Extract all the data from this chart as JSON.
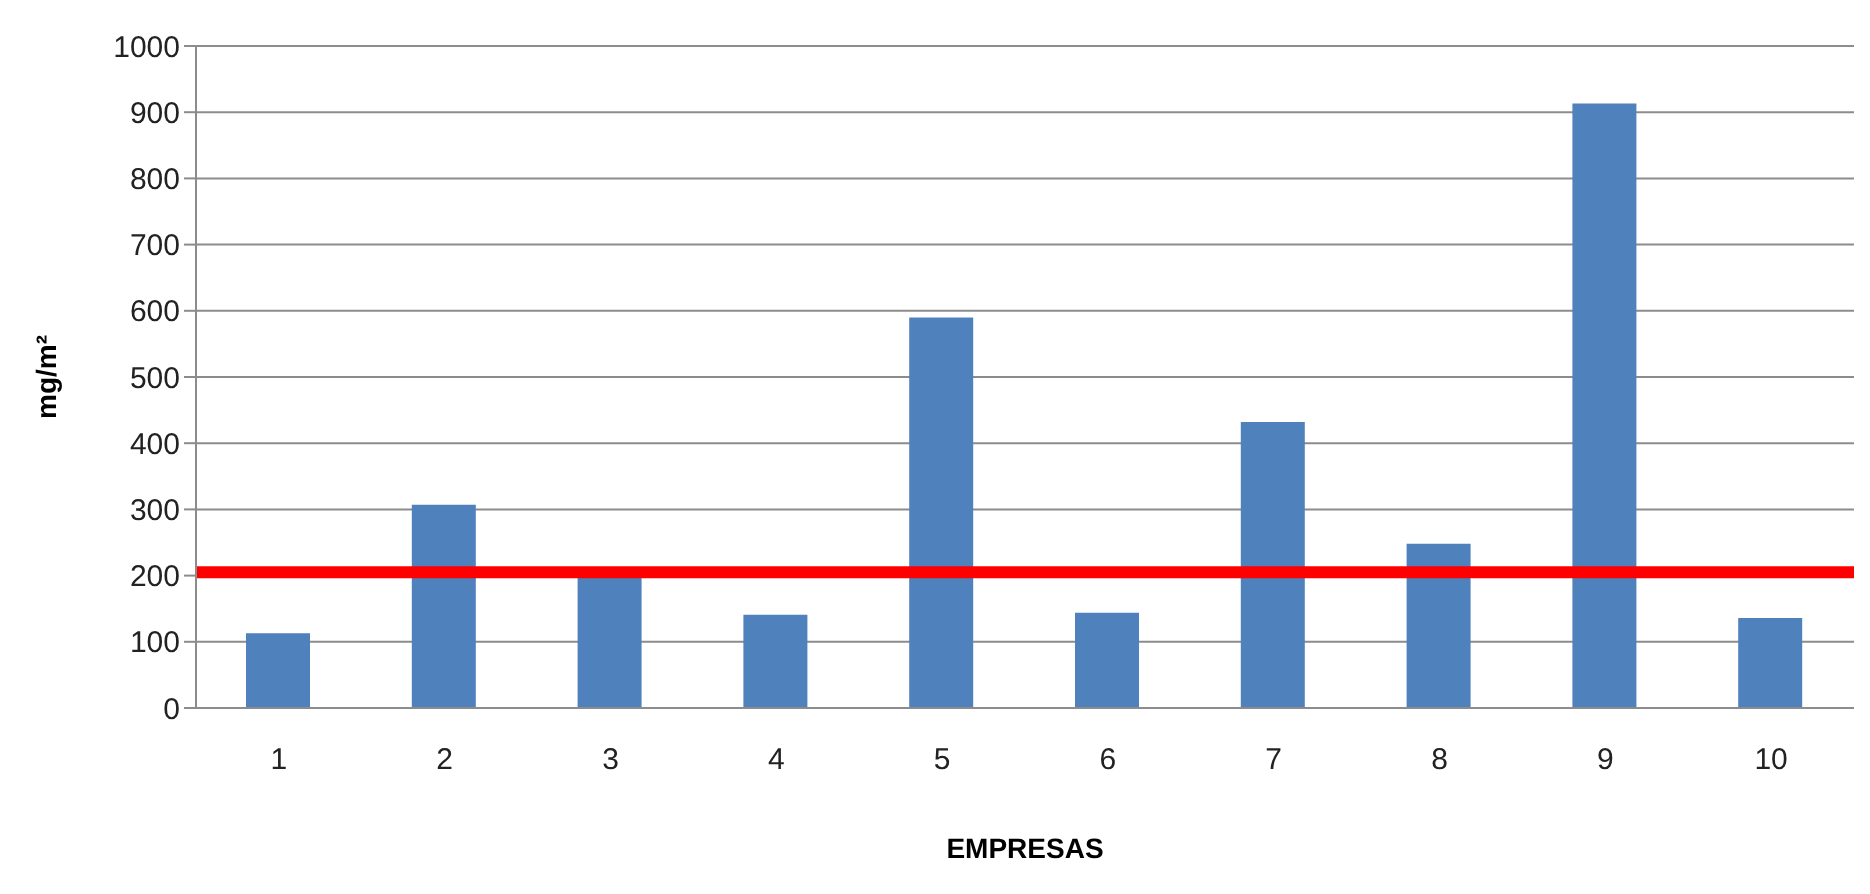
{
  "chart_data": {
    "type": "bar",
    "xlabel": "EMPRESAS",
    "ylabel": "mg/m²",
    "categories": [
      "1",
      "2",
      "3",
      "4",
      "5",
      "6",
      "7",
      "8",
      "9",
      "10"
    ],
    "values": [
      113,
      307,
      200,
      141,
      590,
      144,
      432,
      248,
      913,
      136
    ],
    "color": "#4f81bd",
    "ylim": [
      0,
      1000
    ],
    "yticks": [
      0,
      100,
      200,
      300,
      400,
      500,
      600,
      700,
      800,
      900,
      1000
    ],
    "grid": "y",
    "ref_lines": [
      {
        "axis": "y",
        "value": 205,
        "color": "#ff0000"
      }
    ]
  }
}
